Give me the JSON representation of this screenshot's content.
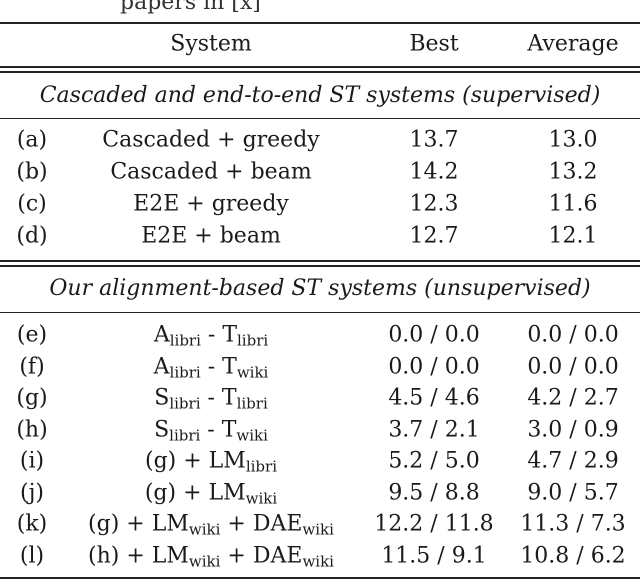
{
  "fragment": "papers in [x]",
  "headers": {
    "system": "System",
    "best": "Best",
    "average": "Average"
  },
  "section_supervised": "Cascaded and end-to-end ST systems (supervised)",
  "section_unsupervised": "Our alignment-based ST systems (unsupervised)",
  "supervised_rows": [
    {
      "id": "(a)",
      "system": "Cascaded + greedy",
      "best": "13.7",
      "average": "13.0"
    },
    {
      "id": "(b)",
      "system": "Cascaded + beam",
      "best": "14.2",
      "average": "13.2"
    },
    {
      "id": "(c)",
      "system": "E2E + greedy",
      "best": "12.3",
      "average": "11.6"
    },
    {
      "id": "(d)",
      "system": "E2E + beam",
      "best": "12.7",
      "average": "12.1"
    }
  ],
  "unsupervised_rows": [
    {
      "id": "(e)",
      "sys_html": "A<sub class=\"s\">libri</sub> - T<sub class=\"s\">libri</sub>",
      "best": "0.0 / 0.0",
      "average": "0.0 / 0.0"
    },
    {
      "id": "(f)",
      "sys_html": "A<sub class=\"s\">libri</sub> - T<sub class=\"s\">wiki</sub>",
      "best": "0.0 / 0.0",
      "average": "0.0 / 0.0"
    },
    {
      "id": "(g)",
      "sys_html": "S<sub class=\"s\">libri</sub> - T<sub class=\"s\">libri</sub>",
      "best": "4.5 / 4.6",
      "average": "4.2 / 2.7"
    },
    {
      "id": "(h)",
      "sys_html": "S<sub class=\"s\">libri</sub> - T<sub class=\"s\">wiki</sub>",
      "best": "3.7 / 2.1",
      "average": "3.0 / 0.9"
    },
    {
      "id": "(i)",
      "sys_html": "(g) + LM<sub class=\"s\">libri</sub>",
      "best": "5.2 / 5.0",
      "average": "4.7 / 2.9"
    },
    {
      "id": "(j)",
      "sys_html": "(g) + LM<sub class=\"s\">wiki</sub>",
      "best": "9.5 / 8.8",
      "average": "9.0 / 5.7"
    },
    {
      "id": "(k)",
      "sys_html": "(g) + LM<sub class=\"s\">wiki</sub> + DAE<sub class=\"s\">wiki</sub>",
      "best": "12.2 / 11.8",
      "average": "11.3 / 7.3"
    },
    {
      "id": "(l)",
      "sys_html": "(h) + LM<sub class=\"s\">wiki</sub> + DAE<sub class=\"s\">wiki</sub>",
      "best": "11.5 / 9.1",
      "average": "10.8 / 6.2"
    }
  ]
}
